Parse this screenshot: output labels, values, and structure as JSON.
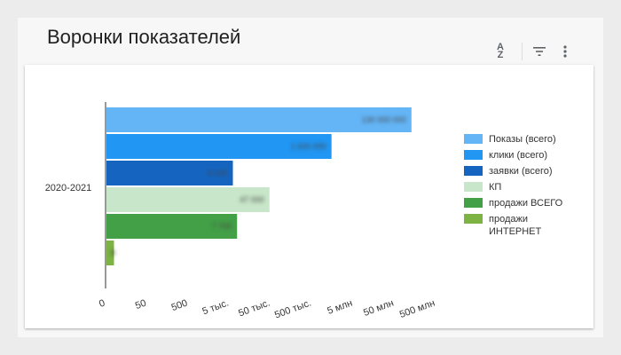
{
  "title": "Воронки показателей",
  "toolbar": {
    "sort_icon": "sort-az-icon",
    "sort_label": "A↓Z",
    "filter_icon": "filter-icon",
    "more_icon": "more-vert-icon"
  },
  "chart_data": {
    "type": "bar",
    "orientation": "horizontal",
    "scale": "log",
    "categories": [
      "2020-2021"
    ],
    "series": [
      {
        "name": "Показы (всего)",
        "values": [
          130000000
        ],
        "color": "#64b5f6"
      },
      {
        "name": "клики (всего)",
        "values": [
          1500000
        ],
        "color": "#2196f3"
      },
      {
        "name": "заявки (всего)",
        "values": [
          6100
        ],
        "color": "#1565c0"
      },
      {
        "name": "КП",
        "values": [
          47000
        ],
        "color": "#c8e6c9"
      },
      {
        "name": "продажи ВСЕГО",
        "values": [
          7700
        ],
        "color": "#43a047"
      },
      {
        "name": "продажи ИНТЕРНЕТ",
        "values": [
          8
        ],
        "color": "#7cb342"
      }
    ],
    "x_ticks": [
      "0",
      "50",
      "500",
      "5 тыс.",
      "50 тыс.",
      "500 тыс.",
      "5 млн",
      "50 млн",
      "500 млн"
    ],
    "legend_position": "right",
    "grid": false
  }
}
